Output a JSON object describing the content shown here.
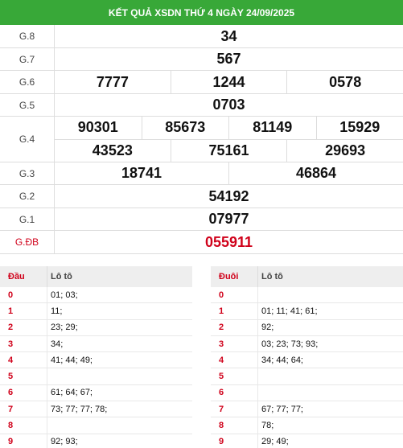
{
  "header": {
    "title": "KẾT QUẢ XSDN THỨ 4 NGÀY 24/09/2025"
  },
  "prizes": [
    {
      "label": "G.8",
      "lines": [
        [
          "34"
        ]
      ]
    },
    {
      "label": "G.7",
      "lines": [
        [
          "567"
        ]
      ]
    },
    {
      "label": "G.6",
      "lines": [
        [
          "7777",
          "1244",
          "0578"
        ]
      ]
    },
    {
      "label": "G.5",
      "lines": [
        [
          "0703"
        ]
      ]
    },
    {
      "label": "G.4",
      "lines": [
        [
          "90301",
          "85673",
          "81149",
          "15929"
        ],
        [
          "43523",
          "75161",
          "29693"
        ]
      ]
    },
    {
      "label": "G.3",
      "lines": [
        [
          "18741",
          "46864"
        ]
      ]
    },
    {
      "label": "G.2",
      "lines": [
        [
          "54192"
        ]
      ]
    },
    {
      "label": "G.1",
      "lines": [
        [
          "07977"
        ]
      ]
    },
    {
      "label": "G.ĐB",
      "lines": [
        [
          "055911"
        ]
      ]
    }
  ],
  "loto_dau": {
    "col1": "Đầu",
    "col2": "Lô tô",
    "rows": [
      {
        "k": "0",
        "v": "01; 03;"
      },
      {
        "k": "1",
        "v": "11;"
      },
      {
        "k": "2",
        "v": "23; 29;"
      },
      {
        "k": "3",
        "v": "34;"
      },
      {
        "k": "4",
        "v": "41; 44; 49;"
      },
      {
        "k": "5",
        "v": ""
      },
      {
        "k": "6",
        "v": "61; 64; 67;"
      },
      {
        "k": "7",
        "v": "73; 77; 77; 78;"
      },
      {
        "k": "8",
        "v": ""
      },
      {
        "k": "9",
        "v": "92; 93;"
      }
    ]
  },
  "loto_duoi": {
    "col1": "Đuôi",
    "col2": "Lô tô",
    "rows": [
      {
        "k": "0",
        "v": ""
      },
      {
        "k": "1",
        "v": "01; 11; 41; 61;"
      },
      {
        "k": "2",
        "v": "92;"
      },
      {
        "k": "3",
        "v": "03; 23; 73; 93;"
      },
      {
        "k": "4",
        "v": "34; 44; 64;"
      },
      {
        "k": "5",
        "v": ""
      },
      {
        "k": "6",
        "v": ""
      },
      {
        "k": "7",
        "v": "67; 77; 77;"
      },
      {
        "k": "8",
        "v": "78;"
      },
      {
        "k": "9",
        "v": "29; 49;"
      }
    ]
  },
  "colors": {
    "header_green": "#38a838",
    "accent_red": "#d0021b"
  }
}
